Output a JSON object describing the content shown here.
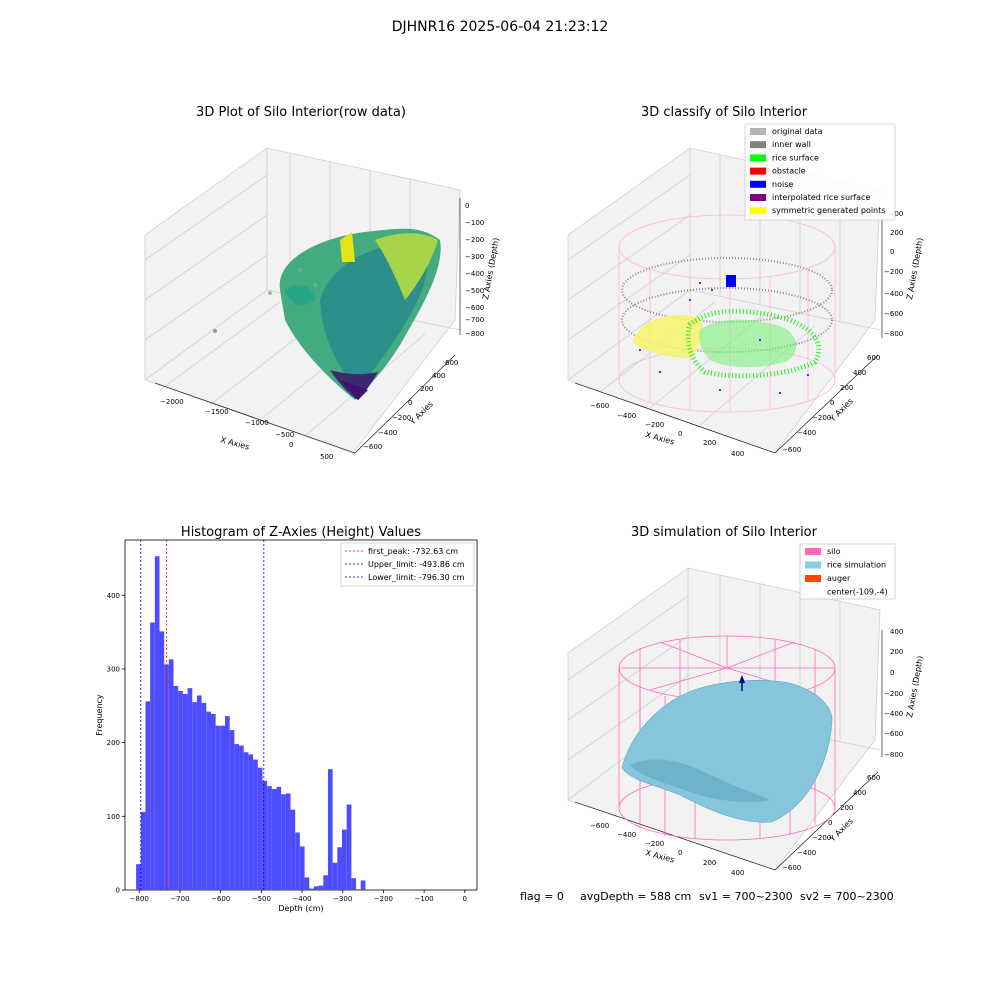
{
  "suptitle": "DJHNR16 2025-06-04 21:23:12",
  "footer": {
    "flag": "flag = 0",
    "avg_depth": "avgDepth = 588 cm",
    "sv1": "sv1 = 700~2300",
    "sv2": "sv2 = 700~2300"
  },
  "panels": {
    "raw": {
      "title": "3D Plot of Silo Interior(row data)",
      "xlabel": "X Axies",
      "ylabel": "Y Axies",
      "zlabel": "Z Axies (Depth)",
      "xticks": [
        "−2000",
        "−1500",
        "−1000",
        "−500",
        "0",
        "500"
      ],
      "yticks": [
        "600",
        "400",
        "200",
        "0",
        "−200",
        "−400",
        "−600"
      ],
      "zticks": [
        "0",
        "−100",
        "−200",
        "−300",
        "−400",
        "−500",
        "−600",
        "−700",
        "−800"
      ]
    },
    "classify": {
      "title": "3D classify of Silo Interior",
      "xlabel": "X Axies",
      "ylabel": "Y Axies",
      "zlabel": "Z Axies (Depth)",
      "xticks": [
        "−600",
        "−400",
        "−200",
        "0",
        "200",
        "400"
      ],
      "yticks": [
        "600",
        "400",
        "200",
        "0",
        "−200",
        "−400",
        "−600"
      ],
      "zticks": [
        "400",
        "200",
        "0",
        "−200",
        "−400",
        "−600",
        "−800"
      ],
      "legend": [
        {
          "label": "original data",
          "color": "#b3b3b3"
        },
        {
          "label": "inner wall",
          "color": "#808080"
        },
        {
          "label": "rice surface",
          "color": "#00ff00"
        },
        {
          "label": "obstacle",
          "color": "#ff0000"
        },
        {
          "label": "noise",
          "color": "#0000ff"
        },
        {
          "label": "interpolated rice surface",
          "color": "#800080"
        },
        {
          "label": "symmetric generated points",
          "color": "#ffff00"
        }
      ],
      "legend_placement": "upper right"
    },
    "simulation": {
      "title": "3D simulation of Silo Interior",
      "xlabel": "X Axies",
      "ylabel": "Y Axies",
      "zlabel": "Z Axies (Depth)",
      "xticks": [
        "−600",
        "−400",
        "−200",
        "0",
        "200",
        "400"
      ],
      "yticks": [
        "600",
        "400",
        "200",
        "0",
        "−200",
        "−400",
        "−600"
      ],
      "zticks": [
        "400",
        "200",
        "0",
        "−200",
        "−400",
        "−600",
        "−800"
      ],
      "legend": [
        {
          "label": "silo",
          "color": "#ff69b4"
        },
        {
          "label": "rice simulation",
          "color": "#87ceeb"
        },
        {
          "label": "auger",
          "color": "#ff4500"
        },
        {
          "label": "center(-109,-4)",
          "color": ""
        }
      ],
      "legend_placement": "upper right"
    }
  },
  "chart_data": [
    {
      "type": "bar",
      "title": "Histogram of Z-Axies (Height) Values",
      "xlabel": "Depth (cm)",
      "ylabel": "Frequency",
      "xlim": [
        -835,
        30
      ],
      "ylim": [
        0,
        475
      ],
      "xticks": [
        -800,
        -700,
        -600,
        -500,
        -400,
        -300,
        -200,
        -100,
        0
      ],
      "yticks": [
        0,
        100,
        200,
        300,
        400
      ],
      "grid": false,
      "bar_color": "#4d4dff",
      "bin_width": 11.5,
      "bins": [
        {
          "x": -802,
          "y": 35
        },
        {
          "x": -790.5,
          "y": 106
        },
        {
          "x": -779,
          "y": 256
        },
        {
          "x": -767.5,
          "y": 363
        },
        {
          "x": -756,
          "y": 453
        },
        {
          "x": -744.5,
          "y": 351
        },
        {
          "x": -733,
          "y": 306
        },
        {
          "x": -721.5,
          "y": 313
        },
        {
          "x": -710,
          "y": 277
        },
        {
          "x": -698.5,
          "y": 270
        },
        {
          "x": -687,
          "y": 266
        },
        {
          "x": -675.5,
          "y": 274
        },
        {
          "x": -664,
          "y": 255
        },
        {
          "x": -652.5,
          "y": 264
        },
        {
          "x": -641,
          "y": 254
        },
        {
          "x": -629.5,
          "y": 242
        },
        {
          "x": -618,
          "y": 239
        },
        {
          "x": -606.5,
          "y": 223
        },
        {
          "x": -595,
          "y": 223
        },
        {
          "x": -583.5,
          "y": 236
        },
        {
          "x": -572,
          "y": 217
        },
        {
          "x": -560.5,
          "y": 198
        },
        {
          "x": -549,
          "y": 196
        },
        {
          "x": -537.5,
          "y": 187
        },
        {
          "x": -526,
          "y": 184
        },
        {
          "x": -514.5,
          "y": 177
        },
        {
          "x": -503,
          "y": 166
        },
        {
          "x": -491.5,
          "y": 148
        },
        {
          "x": -480,
          "y": 141
        },
        {
          "x": -468.5,
          "y": 137
        },
        {
          "x": -457,
          "y": 140
        },
        {
          "x": -445.5,
          "y": 130
        },
        {
          "x": -434,
          "y": 131
        },
        {
          "x": -422.5,
          "y": 109
        },
        {
          "x": -411,
          "y": 78
        },
        {
          "x": -399.5,
          "y": 59
        },
        {
          "x": -388,
          "y": 17
        },
        {
          "x": -376.5,
          "y": 2
        },
        {
          "x": -365,
          "y": 5
        },
        {
          "x": -353.5,
          "y": 6
        },
        {
          "x": -342,
          "y": 20
        },
        {
          "x": -330.5,
          "y": 164
        },
        {
          "x": -319,
          "y": 37
        },
        {
          "x": -307.5,
          "y": 58
        },
        {
          "x": -296,
          "y": 82
        },
        {
          "x": -284.5,
          "y": 116
        },
        {
          "x": -273,
          "y": 16
        },
        {
          "x": -261.5,
          "y": 1
        },
        {
          "x": -250,
          "y": 13
        }
      ],
      "vlines": [
        {
          "label": "first_peak: -732.63 cm",
          "x": -732.63,
          "color": "#ff0000"
        },
        {
          "label": "Upper_limit: -493.86 cm",
          "x": -493.86,
          "color": "#00008b"
        },
        {
          "label": "Lower_limit: -796.30 cm",
          "x": -796.3,
          "color": "#0000ff"
        }
      ],
      "legend_placement": "upper right"
    }
  ]
}
